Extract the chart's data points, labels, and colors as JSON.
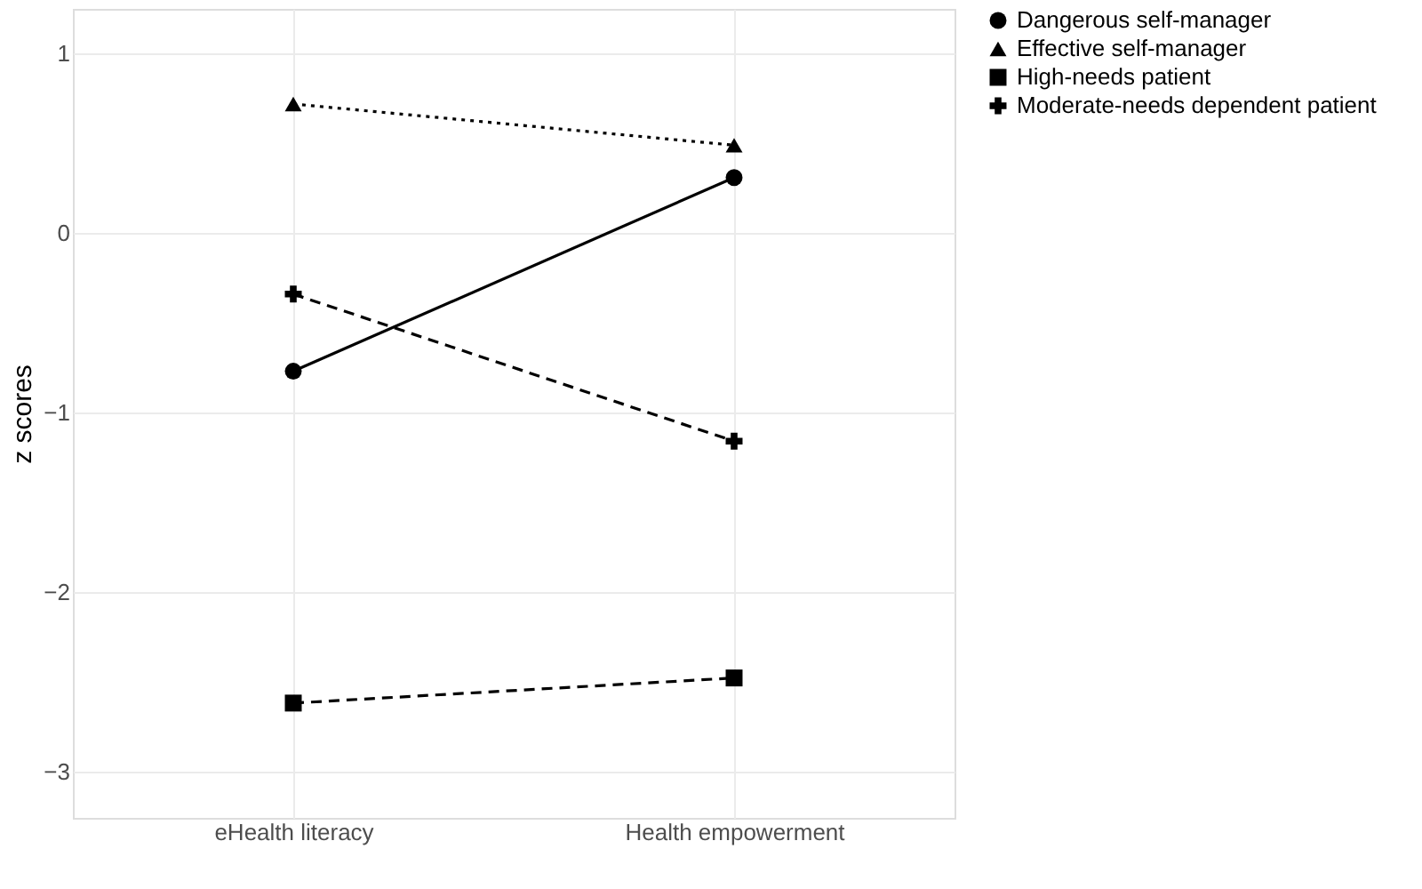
{
  "chart_data": {
    "type": "line",
    "ylabel": "z scores",
    "categories": [
      "eHealth literacy",
      "Health empowerment"
    ],
    "series": [
      {
        "name": "Dangerous self-manager",
        "color": "#000000",
        "values": [
          -0.77,
          0.31
        ],
        "marker": "circle",
        "line_style": "solid"
      },
      {
        "name": "Effective self-manager",
        "color": "#000000",
        "values": [
          0.72,
          0.49
        ],
        "marker": "triangle",
        "line_style": "dotted"
      },
      {
        "name": "High-needs patient",
        "color": "#000000",
        "values": [
          -2.62,
          -2.48
        ],
        "marker": "square",
        "line_style": "dashed"
      },
      {
        "name": "Moderate-needs dependent patient",
        "color": "#000000",
        "values": [
          -0.34,
          -1.16
        ],
        "marker": "cross",
        "line_style": "dashed"
      }
    ],
    "ylim": [
      -3.26,
      1.25
    ],
    "yticks": [
      {
        "value": -3,
        "label": "−3"
      },
      {
        "value": -2,
        "label": "−2"
      },
      {
        "value": -1,
        "label": "−1"
      },
      0,
      1
    ],
    "grid": true,
    "legend": "right"
  }
}
